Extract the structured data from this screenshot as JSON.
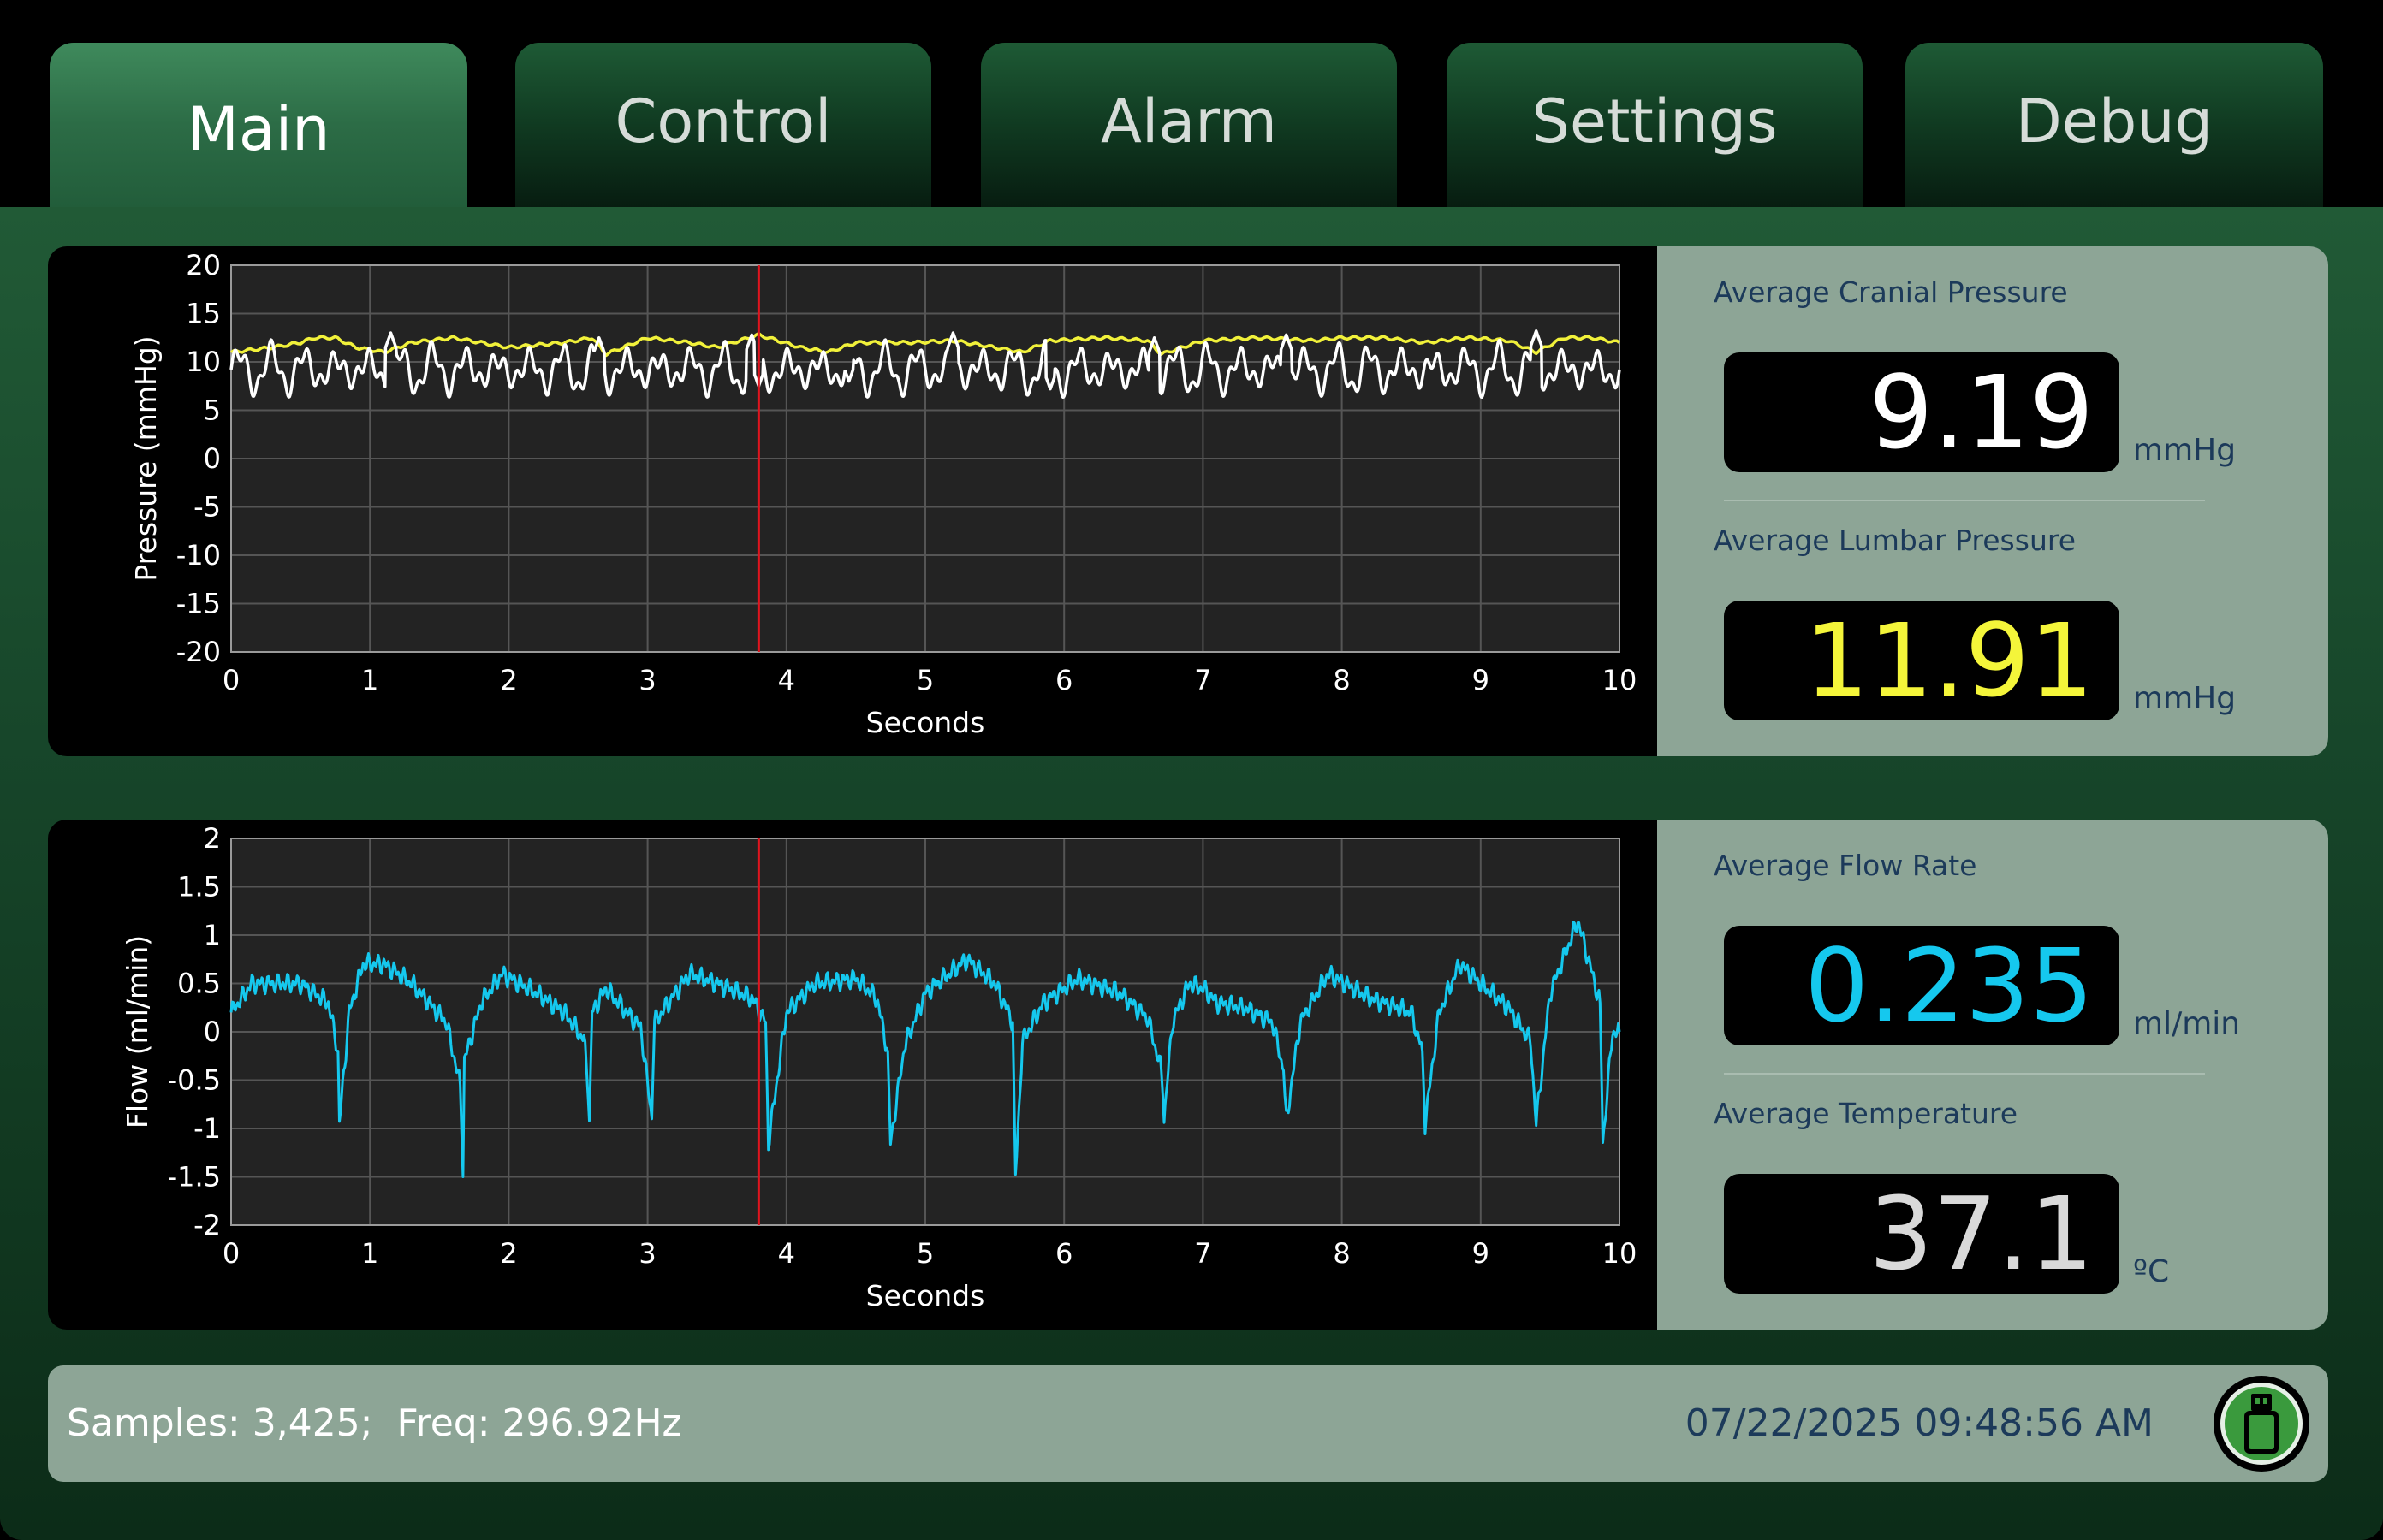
{
  "tabs": [
    {
      "label": "Main",
      "active": true
    },
    {
      "label": "Control",
      "active": false
    },
    {
      "label": "Alarm",
      "active": false
    },
    {
      "label": "Settings",
      "active": false
    },
    {
      "label": "Debug",
      "active": false
    }
  ],
  "pressure_stats": {
    "cranial": {
      "label": "Average Cranial Pressure",
      "value": "9.19",
      "unit": "mmHg",
      "color": "#ffffff"
    },
    "lumbar": {
      "label": "Average Lumbar Pressure",
      "value": "11.91",
      "unit": "mmHg",
      "color": "#f4f53a"
    }
  },
  "flow_stats": {
    "flow": {
      "label": "Average Flow Rate",
      "value": "0.235",
      "unit": "ml/min",
      "color": "#15c8ee"
    },
    "temperature": {
      "label": "Average Temperature",
      "value": "37.1",
      "unit": "ºC",
      "color": "#d9d9d9"
    }
  },
  "status": {
    "samples_freq": "Samples: 3,425;  Freq: 296.92Hz",
    "datetime": "07/22/2025 09:48:56 AM",
    "usb_icon": "usb-drive-icon"
  },
  "colors": {
    "cursor": "#e0141e",
    "grid": "#555555",
    "plot_bg": "#232323"
  },
  "chart_data": [
    {
      "type": "line",
      "xlabel": "Seconds",
      "ylabel": "Pressure (mmHg)",
      "xlim": [
        0,
        10
      ],
      "ylim": [
        -20,
        20
      ],
      "xticks": [
        0,
        1,
        2,
        3,
        4,
        5,
        6,
        7,
        8,
        9,
        10
      ],
      "yticks": [
        20,
        15,
        10,
        5,
        0,
        -5,
        -10,
        -15,
        -20
      ],
      "grid": true,
      "cursor_x": 3.8,
      "series": [
        {
          "color": "#f1f13a",
          "x": [
            0,
            0.3,
            0.5,
            0.6,
            0.75,
            0.9,
            1.1,
            1.3,
            1.6,
            2.0,
            2.4,
            2.6,
            2.7,
            3.0,
            3.3,
            3.5,
            3.8,
            4.1,
            4.3,
            4.5,
            4.7,
            4.9,
            5.2,
            5.5,
            5.7,
            5.9,
            6.3,
            6.6,
            6.7,
            7.0,
            7.4,
            7.8,
            8.0,
            8.3,
            8.6,
            8.9,
            9.2,
            9.4,
            9.6,
            9.8,
            10
          ],
          "y": [
            11,
            11.5,
            12,
            12.5,
            12.5,
            11.5,
            11,
            12,
            12.5,
            11.5,
            12,
            12.5,
            10.8,
            12.5,
            12,
            11.5,
            12.8,
            11.5,
            11,
            12,
            12,
            12,
            12.2,
            11.5,
            11,
            12.2,
            12.5,
            12.2,
            10.8,
            12.2,
            12.5,
            12.2,
            12.5,
            12.5,
            12,
            12.5,
            12.2,
            11,
            12.5,
            12.5,
            12
          ]
        },
        {
          "color": "#ffffff",
          "base": 9.2,
          "amp": 2.2,
          "freq": 4.3,
          "peaks_x": [
            1.15,
            2.65,
            3.75,
            5.2,
            6.65,
            7.6,
            9.4
          ],
          "peaks_y": [
            13,
            12.5,
            12.8,
            13,
            12.5,
            12.8,
            13.2
          ],
          "troughs_x": [
            3.8,
            4.45,
            5.9
          ],
          "troughs_y": [
            7.5,
            8,
            7.2
          ]
        }
      ]
    },
    {
      "type": "line",
      "xlabel": "Seconds",
      "ylabel": "Flow (ml/min)",
      "xlim": [
        0,
        10
      ],
      "ylim": [
        -2,
        2
      ],
      "xticks": [
        0,
        1,
        2,
        3,
        4,
        5,
        6,
        7,
        8,
        9,
        10
      ],
      "yticks": [
        2,
        1.5,
        1,
        0.5,
        0,
        -0.5,
        -1,
        -1.5,
        -2
      ],
      "grid": true,
      "cursor_x": 3.8,
      "series": [
        {
          "color": "#15c8ee",
          "x": [
            0,
            0.15,
            0.5,
            0.7,
            0.77,
            0.78,
            0.85,
            0.95,
            1.1,
            1.3,
            1.55,
            1.65,
            1.67,
            1.68,
            1.8,
            1.95,
            2.2,
            2.4,
            2.55,
            2.58,
            2.6,
            2.7,
            2.85,
            2.95,
            3.03,
            3.05,
            3.15,
            3.3,
            3.5,
            3.75,
            3.85,
            3.87,
            4.0,
            4.2,
            4.5,
            4.65,
            4.73,
            4.75,
            4.85,
            5.0,
            5.3,
            5.5,
            5.63,
            5.65,
            5.7,
            5.85,
            6.1,
            6.4,
            6.6,
            6.7,
            6.72,
            6.78,
            6.9,
            7.0,
            7.1,
            7.3,
            7.5,
            7.58,
            7.6,
            7.7,
            7.9,
            8.2,
            8.5,
            8.58,
            8.6,
            8.7,
            8.85,
            9.0,
            9.2,
            9.36,
            9.4,
            9.5,
            9.7,
            9.86,
            9.88,
            9.95,
            10
          ],
          "y": [
            0.2,
            0.5,
            0.5,
            0.3,
            -0.2,
            -0.95,
            0.2,
            0.7,
            0.7,
            0.5,
            0.1,
            -0.55,
            -1.5,
            -0.3,
            0.3,
            0.6,
            0.4,
            0.2,
            -0.1,
            -0.92,
            0.2,
            0.45,
            0.2,
            0.05,
            -0.9,
            0.1,
            0.3,
            0.6,
            0.5,
            0.35,
            0.1,
            -1.15,
            0.2,
            0.5,
            0.55,
            0.35,
            -0.2,
            -1.15,
            -0.15,
            0.4,
            0.75,
            0.5,
            0.1,
            -1.5,
            -0.1,
            0.3,
            0.55,
            0.4,
            0.15,
            -0.4,
            -0.9,
            0.1,
            0.5,
            0.45,
            0.3,
            0.25,
            0.1,
            -0.4,
            -0.92,
            0.1,
            0.6,
            0.35,
            0.2,
            -0.2,
            -0.95,
            0.2,
            0.7,
            0.5,
            0.25,
            -0.1,
            -0.95,
            0.4,
            1.15,
            0.3,
            -1.15,
            0.0,
            0.0
          ]
        }
      ]
    }
  ]
}
